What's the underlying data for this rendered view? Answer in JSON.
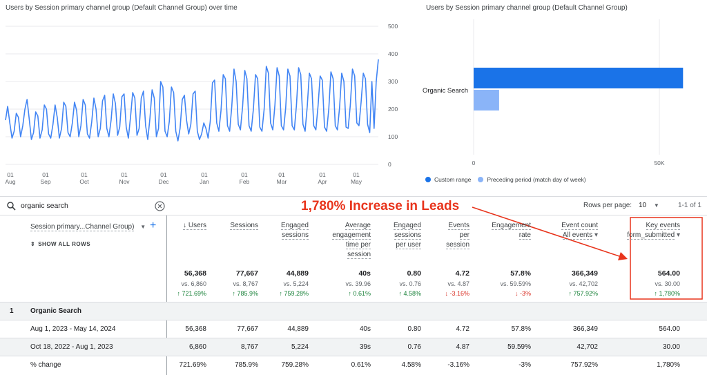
{
  "line_chart": {
    "title": "Users by Session primary channel group (Default Channel Group) over time",
    "y_ticks": [
      "500",
      "400",
      "300",
      "200",
      "100",
      "0"
    ],
    "x_ticks": [
      {
        "day": "01",
        "month": "Aug"
      },
      {
        "day": "01",
        "month": "Sep"
      },
      {
        "day": "01",
        "month": "Oct"
      },
      {
        "day": "01",
        "month": "Nov"
      },
      {
        "day": "01",
        "month": "Dec"
      },
      {
        "day": "01",
        "month": "Jan"
      },
      {
        "day": "01",
        "month": "Feb"
      },
      {
        "day": "01",
        "month": "Mar"
      },
      {
        "day": "01",
        "month": "Apr"
      },
      {
        "day": "01",
        "month": "May"
      }
    ],
    "line_color": "#4285f4"
  },
  "bar_chart": {
    "title": "Users by Session primary channel group (Default Channel Group)",
    "category": "Organic Search",
    "x_ticks": [
      "0",
      "50K"
    ],
    "legend": [
      "Custom range",
      "Preceding period (match day of week)"
    ],
    "colors": [
      "#1a73e8",
      "#8ab4f8"
    ]
  },
  "chart_data": [
    {
      "type": "line",
      "title": "Users by Session primary channel group (Default Channel Group) over time",
      "ylim": [
        0,
        500
      ],
      "x_ticks": [
        "01 Aug",
        "01 Sep",
        "01 Oct",
        "01 Nov",
        "01 Dec",
        "01 Jan",
        "01 Feb",
        "01 Mar",
        "01 Apr",
        "01 May"
      ],
      "series": [
        {
          "values": [
            160,
            210,
            150,
            95,
            120,
            185,
            170,
            100,
            140,
            200,
            235,
            165,
            90,
            115,
            190,
            175,
            95,
            125,
            215,
            200,
            110,
            95,
            145,
            215,
            170,
            95,
            130,
            225,
            210,
            115,
            100,
            150,
            225,
            195,
            100,
            140,
            235,
            215,
            110,
            95,
            155,
            240,
            200,
            100,
            130,
            230,
            250,
            130,
            100,
            160,
            255,
            220,
            105,
            135,
            245,
            255,
            135,
            95,
            170,
            260,
            240,
            105,
            130,
            240,
            265,
            140,
            90,
            165,
            270,
            240,
            100,
            130,
            300,
            280,
            120,
            100,
            155,
            280,
            260,
            120,
            85,
            130,
            235,
            250,
            160,
            110,
            145,
            255,
            265,
            120,
            90,
            110,
            150,
            130,
            95,
            155,
            295,
            305,
            150,
            120,
            195,
            325,
            310,
            140,
            120,
            210,
            345,
            300,
            145,
            125,
            210,
            340,
            310,
            140,
            120,
            200,
            325,
            310,
            135,
            120,
            200,
            355,
            330,
            150,
            125,
            215,
            350,
            320,
            140,
            125,
            205,
            345,
            320,
            140,
            125,
            215,
            350,
            325,
            145,
            120,
            210,
            330,
            310,
            140,
            125,
            210,
            320,
            305,
            135,
            120,
            200,
            335,
            310,
            140,
            125,
            205,
            330,
            300,
            135,
            130,
            215,
            345,
            320,
            150,
            140,
            225,
            330,
            310,
            145,
            115,
            300,
            130,
            300,
            380
          ]
        }
      ]
    },
    {
      "type": "bar",
      "title": "Users by Session primary channel group (Default Channel Group)",
      "categories": [
        "Organic Search"
      ],
      "series": [
        {
          "name": "Custom range",
          "values": [
            56368
          ]
        },
        {
          "name": "Preceding period (match day of week)",
          "values": [
            6860
          ]
        }
      ],
      "x_ticks": [
        "0",
        "50K"
      ]
    }
  ],
  "search": {
    "value": "organic search"
  },
  "annotation": {
    "text": "1,780% Increase in Leads",
    "color": "#e8341c"
  },
  "pagination": {
    "rows_label": "Rows per page:",
    "rows_value": "10",
    "range": "1-1 of 1"
  },
  "table": {
    "dimension_header": "Session primary...Channel Group)",
    "show_all_rows": "SHOW ALL ROWS",
    "columns": [
      {
        "lines": [
          "↓ Users"
        ]
      },
      {
        "lines": [
          "Sessions"
        ]
      },
      {
        "lines": [
          "Engaged",
          "sessions"
        ]
      },
      {
        "lines": [
          "Average",
          "engagement",
          "time per",
          "session"
        ]
      },
      {
        "lines": [
          "Engaged",
          "sessions",
          "per user"
        ]
      },
      {
        "lines": [
          "Events",
          "per",
          "session"
        ]
      },
      {
        "lines": [
          "Engagement",
          "rate"
        ]
      },
      {
        "lines": [
          "Event count",
          "All events"
        ]
      },
      {
        "lines": [
          "Key events",
          "form_submitted"
        ]
      }
    ],
    "totals": [
      {
        "value": "56,368",
        "prev": "vs. 6,860",
        "change": "↑ 721.69%",
        "dir": "up"
      },
      {
        "value": "77,667",
        "prev": "vs. 8,767",
        "change": "↑ 785.9%",
        "dir": "up"
      },
      {
        "value": "44,889",
        "prev": "vs. 5,224",
        "change": "↑ 759.28%",
        "dir": "up"
      },
      {
        "value": "40s",
        "prev": "vs. 39.96",
        "change": "↑ 0.61%",
        "dir": "up"
      },
      {
        "value": "0.80",
        "prev": "vs. 0.76",
        "change": "↑ 4.58%",
        "dir": "up"
      },
      {
        "value": "4.72",
        "prev": "vs. 4.87",
        "change": "↓ -3.16%",
        "dir": "down"
      },
      {
        "value": "57.8%",
        "prev": "vs. 59.59%",
        "change": "↓ -3%",
        "dir": "down"
      },
      {
        "value": "366,349",
        "prev": "vs. 42,702",
        "change": "↑ 757.92%",
        "dir": "up"
      },
      {
        "value": "564.00",
        "prev": "vs. 30.00",
        "change": "↑ 1,780%",
        "dir": "up"
      }
    ],
    "group_row": {
      "index": "1",
      "label": "Organic Search"
    },
    "rows": [
      {
        "label": "Aug 1, 2023 - May 14, 2024",
        "cells": [
          "56,368",
          "77,667",
          "44,889",
          "40s",
          "0.80",
          "4.72",
          "57.8%",
          "366,349",
          "564.00"
        ]
      },
      {
        "label": "Oct 18, 2022 - Aug 1, 2023",
        "cells": [
          "6,860",
          "8,767",
          "5,224",
          "39s",
          "0.76",
          "4.87",
          "59.59%",
          "42,702",
          "30.00"
        ]
      },
      {
        "label": "% change",
        "cells": [
          "721.69%",
          "785.9%",
          "759.28%",
          "0.61%",
          "4.58%",
          "-3.16%",
          "-3%",
          "757.92%",
          "1,780%"
        ]
      }
    ]
  }
}
